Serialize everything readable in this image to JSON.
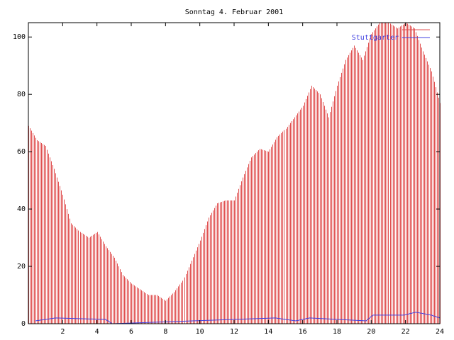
{
  "chart_data": {
    "type": "bar",
    "title": "Sonntag 4. Februar 2001",
    "xlabel": "",
    "ylabel": "",
    "xlim": [
      0,
      24
    ],
    "ylim": [
      0,
      105
    ],
    "x_ticks": [
      2,
      4,
      6,
      8,
      10,
      12,
      14,
      16,
      18,
      20,
      22,
      24
    ],
    "y_ticks": [
      0,
      20,
      40,
      60,
      80,
      100
    ],
    "grid": false,
    "legend_position": "top-right",
    "colors": {
      "bars": "#e05050",
      "line": "#4040e0",
      "axes": "#000000"
    },
    "series": [
      {
        "name": "",
        "type": "bar",
        "x": [
          0,
          0.5,
          1,
          1.5,
          2,
          2.5,
          3,
          3.5,
          4,
          4.5,
          5,
          5.5,
          6,
          6.5,
          7,
          7.5,
          8,
          8.5,
          9,
          9.5,
          10,
          10.5,
          11,
          11.5,
          12,
          12.5,
          13,
          13.5,
          14,
          14.5,
          15,
          15.5,
          16,
          16.5,
          17,
          17.5,
          18,
          18.5,
          19,
          19.5,
          20,
          20.5,
          21,
          21.5,
          22,
          22.5,
          23,
          23.5,
          24
        ],
        "values": [
          69,
          64,
          62,
          54,
          45,
          35,
          32,
          30,
          32,
          27,
          23,
          17,
          14,
          12,
          10,
          10,
          8,
          11,
          15,
          22,
          29,
          37,
          42,
          43,
          43,
          51,
          58,
          61,
          60,
          65,
          68,
          72,
          76,
          83,
          80,
          72,
          83,
          92,
          97,
          92,
          101,
          105,
          105,
          103,
          105,
          103,
          95,
          88,
          77
        ]
      },
      {
        "name": "Stuttgarter",
        "type": "line",
        "x": [
          0.4,
          1.6,
          4.5,
          4.9,
          14.4,
          15.6,
          16.4,
          19.7,
          20.1,
          21.9,
          22.6,
          23.5,
          24
        ],
        "values": [
          1,
          2,
          1.5,
          0,
          2,
          1,
          2,
          1,
          3,
          3,
          4,
          3,
          2
        ]
      }
    ]
  }
}
